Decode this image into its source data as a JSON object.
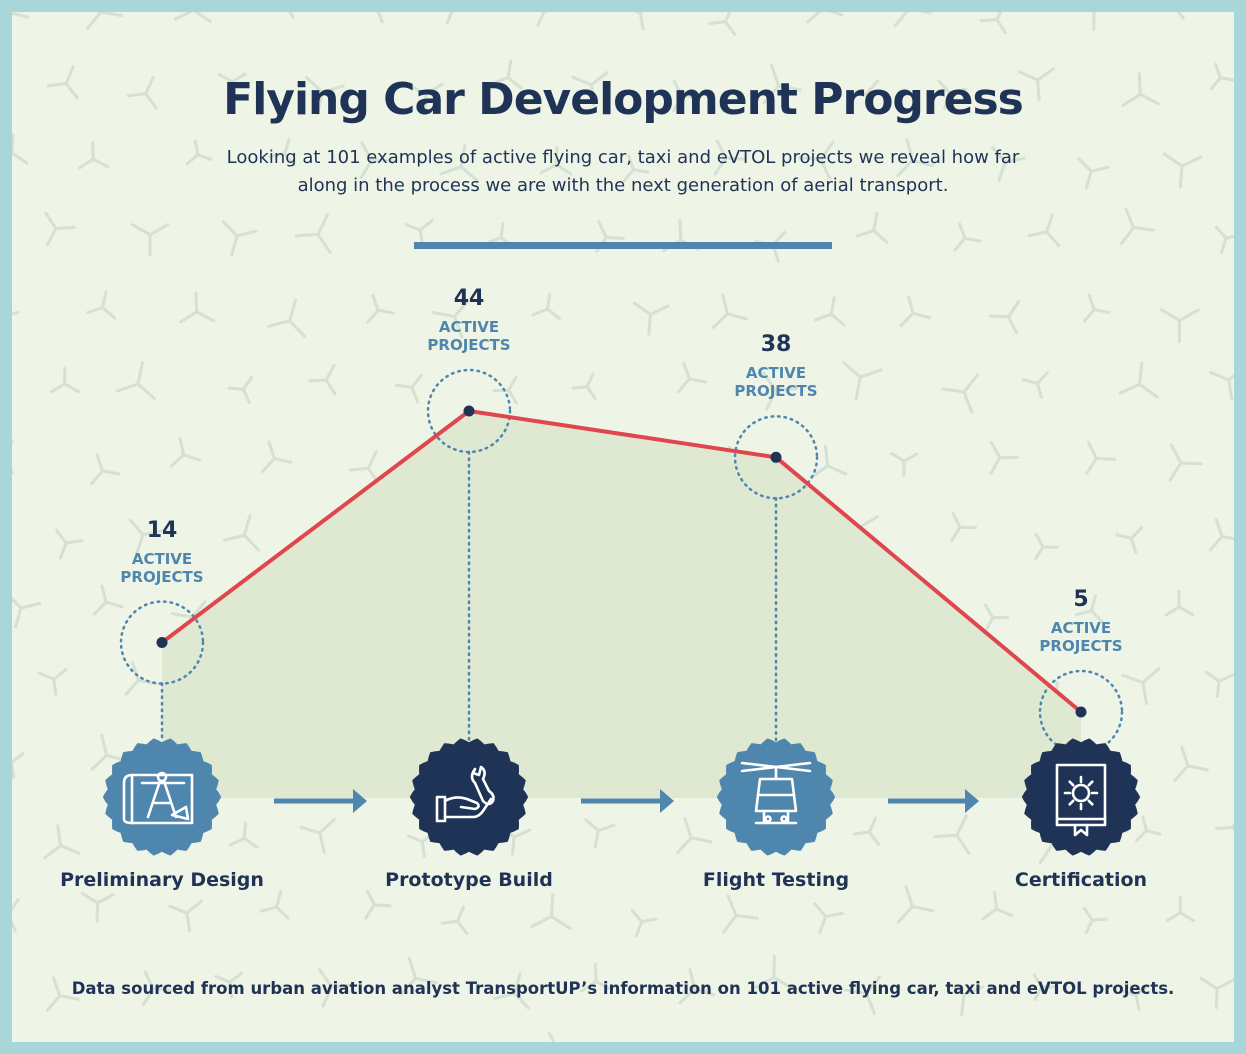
{
  "title": "Flying Car Development Progress",
  "subtitle": "Looking at 101 examples of active flying car, taxi and eVTOL projects we reveal how far along in the process we are with the next generation of aerial transport.",
  "footnote": "Data sourced from urban aviation analyst TransportUP’s information on 101 active flying car, taxi and eVTOL projects.",
  "colors": {
    "navy": "#1f3356",
    "steel_blue": "#4f86ae",
    "line_red": "#e0464d",
    "area_fill": "#dfe9d1",
    "background": "#eef4e6",
    "border": "#a9d6d9"
  },
  "chart_data": {
    "type": "line",
    "categories": [
      "Preliminary Design",
      "Prototype Build",
      "Flight Testing",
      "Certification"
    ],
    "values": [
      14,
      44,
      38,
      5
    ],
    "value_unit": "ACTIVE\nPROJECTS",
    "icons": [
      "blueprint-compass-icon",
      "hand-wrench-icon",
      "helicopter-icon",
      "certification-manual-icon"
    ],
    "icon_styles": [
      "light",
      "dark",
      "light",
      "dark"
    ],
    "title": "Flying Car Development Progress",
    "xlabel": "",
    "ylabel": "",
    "grid": false
  }
}
